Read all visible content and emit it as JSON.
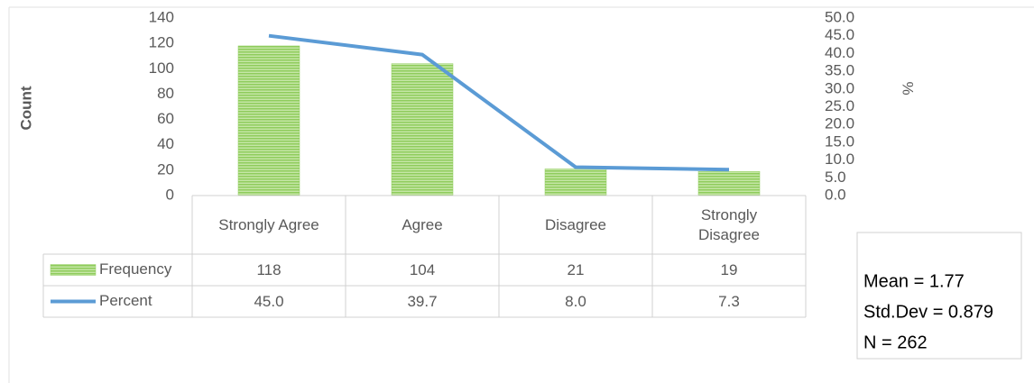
{
  "chart_data": {
    "type": "bar-line",
    "categories": [
      "Strongly Agree",
      "Agree",
      "Disagree",
      "Strongly Disagree"
    ],
    "series": [
      {
        "name": "Frequency",
        "color": "#8fcc5c",
        "values": [
          118,
          104,
          21,
          19
        ]
      },
      {
        "name": "Percent",
        "color": "#5b9bd5",
        "axis": "y2",
        "values": [
          45.0,
          39.7,
          8.0,
          7.3
        ],
        "value_labels": [
          "45.0",
          "39.7",
          "8.0",
          "7.3"
        ]
      }
    ],
    "ylabel": "Count",
    "y2label": "%",
    "ylim": [
      0,
      140
    ],
    "yticks": [
      0,
      20,
      40,
      60,
      80,
      100,
      120,
      140
    ],
    "y2lim": [
      0,
      50
    ],
    "y2ticks": [
      {
        "value": 0,
        "label": "0.0"
      },
      {
        "value": 5,
        "label": "5.0"
      },
      {
        "value": 10,
        "label": "10.0"
      },
      {
        "value": 15,
        "label": "15.0"
      },
      {
        "value": 20,
        "label": "20.0"
      },
      {
        "value": 25,
        "label": "25.0"
      },
      {
        "value": 30,
        "label": "30.0"
      },
      {
        "value": 35,
        "label": "35.0"
      },
      {
        "value": 40,
        "label": "40.0"
      },
      {
        "value": 45,
        "label": "45.0"
      },
      {
        "value": 50,
        "label": "50.0"
      }
    ],
    "data_table": true,
    "annotations": [
      "Mean = 1.77",
      "Std.Dev = 0.879",
      "N = 262"
    ]
  }
}
